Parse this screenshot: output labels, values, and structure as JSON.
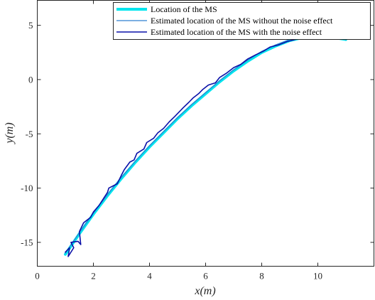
{
  "chart_data": {
    "type": "line",
    "xlabel": "x(m)",
    "ylabel": "y(m)",
    "xlim": [
      0,
      12
    ],
    "ylim": [
      -17.2,
      7.3
    ],
    "xticks": [
      0,
      2,
      4,
      6,
      8,
      10
    ],
    "yticks": [
      -15,
      -10,
      -5,
      0,
      5
    ],
    "grid": false,
    "legend_position": "top-right",
    "series": [
      {
        "name": "Location of the MS",
        "color": "#00e5ee",
        "style": "thick",
        "x": [
          1.0,
          1.5,
          2.0,
          2.5,
          3.0,
          3.5,
          4.0,
          4.5,
          5.0,
          5.5,
          6.0,
          6.5,
          7.0,
          7.5,
          8.0,
          8.5,
          9.0,
          9.5,
          10.0,
          10.5,
          11.0
        ],
        "y": [
          -16.1,
          -14.2,
          -12.4,
          -10.7,
          -9.1,
          -7.6,
          -6.2,
          -4.9,
          -3.6,
          -2.4,
          -1.3,
          -0.2,
          0.8,
          1.7,
          2.5,
          3.1,
          3.6,
          3.9,
          4.0,
          3.9,
          3.7
        ]
      },
      {
        "name": "Estimated location of the MS without the noise effect",
        "color": "#2f7fd0",
        "style": "thin",
        "x": [
          1.0,
          1.5,
          2.0,
          2.5,
          3.0,
          3.5,
          4.0,
          4.5,
          5.0,
          5.5,
          6.0,
          6.5,
          7.0,
          7.5,
          8.0,
          8.5,
          9.0,
          9.5,
          10.0,
          10.5,
          11.0
        ],
        "y": [
          -16.0,
          -14.1,
          -12.3,
          -10.6,
          -9.0,
          -7.5,
          -6.1,
          -4.8,
          -3.5,
          -2.3,
          -1.2,
          -0.1,
          0.9,
          1.8,
          2.6,
          3.2,
          3.7,
          4.0,
          4.1,
          4.0,
          3.8
        ]
      },
      {
        "name": "Estimated location of the MS with the noise effect",
        "color": "#0a10a8",
        "style": "medium",
        "x": [
          1.0,
          1.15,
          1.1,
          1.3,
          1.2,
          1.45,
          1.55,
          1.5,
          1.65,
          1.9,
          2.0,
          2.2,
          2.35,
          2.5,
          2.55,
          2.85,
          3.0,
          3.1,
          3.3,
          3.45,
          3.55,
          3.8,
          3.9,
          4.15,
          4.3,
          4.5,
          4.7,
          4.9,
          5.05,
          5.2,
          5.4,
          5.55,
          5.75,
          5.9,
          6.1,
          6.35,
          6.5,
          6.75,
          7.0,
          7.25,
          7.5,
          7.8,
          8.05,
          8.3,
          8.6,
          8.9,
          9.2,
          9.5,
          9.8,
          10.1,
          10.4,
          10.7,
          11.0
        ],
        "y": [
          -15.9,
          -15.5,
          -16.3,
          -15.5,
          -15.0,
          -14.9,
          -15.2,
          -14.0,
          -13.2,
          -12.7,
          -12.2,
          -11.6,
          -11.0,
          -10.4,
          -10.0,
          -9.6,
          -8.8,
          -8.3,
          -7.6,
          -7.4,
          -6.8,
          -6.4,
          -5.8,
          -5.4,
          -4.9,
          -4.5,
          -3.9,
          -3.4,
          -3.0,
          -2.6,
          -2.1,
          -1.7,
          -1.3,
          -0.9,
          -0.5,
          -0.3,
          0.2,
          0.6,
          1.1,
          1.4,
          1.9,
          2.3,
          2.6,
          3.0,
          3.2,
          3.5,
          3.7,
          3.9,
          4.0,
          4.1,
          3.9,
          3.9,
          3.7
        ]
      }
    ]
  }
}
